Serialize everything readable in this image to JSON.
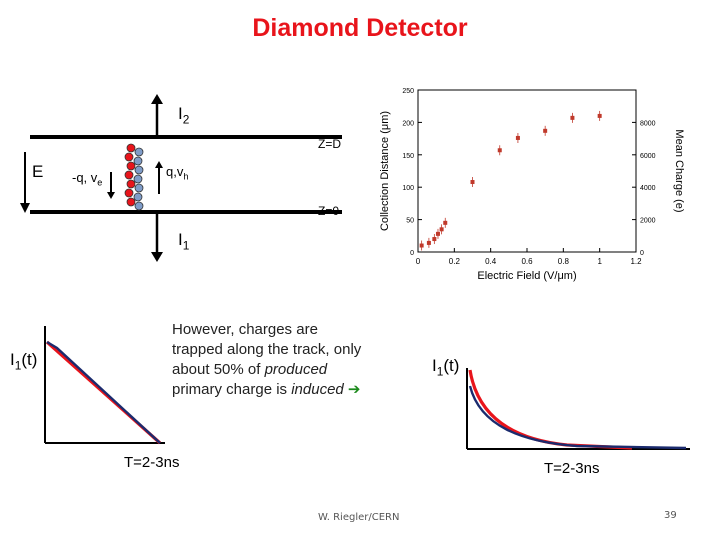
{
  "slide": {
    "title": "Diamond Detector",
    "page_number": "39",
    "footer": "W. Riegler/CERN"
  },
  "detector_diagram": {
    "top_current": {
      "symbol": "I",
      "subscript": "2"
    },
    "bottom_current": {
      "symbol": "I",
      "subscript": "1"
    },
    "electrode_top": "Z=D",
    "electrode_bottom": "Z=0",
    "field_label": "E",
    "electron_label": {
      "text": "-q, v",
      "subscript": "e"
    },
    "hole_label": {
      "text": "q,v",
      "subscript": "h"
    },
    "colors": {
      "electron": "#e8141b",
      "hole": "#7f9cc8"
    }
  },
  "chart_data": {
    "type": "scatter",
    "xlabel": "Electric Field (V/μm)",
    "ylabel": "Collection Distance (μm)",
    "y2label": "Mean Charge (e)",
    "xticks": [
      "0",
      "0.2",
      "0.4",
      "0.6",
      "0.8",
      "1",
      "1.2"
    ],
    "yticks": [
      "0",
      "50",
      "100",
      "150",
      "200",
      "250"
    ],
    "y2ticks": [
      "0",
      "2000",
      "4000",
      "6000",
      "8000"
    ],
    "xlim": [
      0,
      1.2
    ],
    "ylim": [
      0,
      250
    ],
    "series": [
      {
        "x": [
          0.02,
          0.06,
          0.09,
          0.11,
          0.13,
          0.15,
          0.3,
          0.45,
          0.55,
          0.7,
          0.85,
          1.0
        ],
        "y": [
          10,
          14,
          20,
          28,
          35,
          45,
          108,
          157,
          176,
          187,
          207,
          210
        ]
      }
    ]
  },
  "note": {
    "line1": "However, charges are",
    "line2": "trapped along the track, only",
    "line3_prefix": "about 50% of ",
    "line3_emph": "produced",
    "line4_prefix": "primary charge is ",
    "line4_emph": "induced",
    "arrow": "➔"
  },
  "left_plot": {
    "ylabel": "I",
    "ylabel_sub": "1",
    "ylabel_suffix": "(t)",
    "xlabel": "T=2-3ns"
  },
  "right_plot": {
    "ylabel": "I",
    "ylabel_sub": "1",
    "ylabel_suffix": "(t)",
    "xlabel": "T=2-3ns"
  }
}
